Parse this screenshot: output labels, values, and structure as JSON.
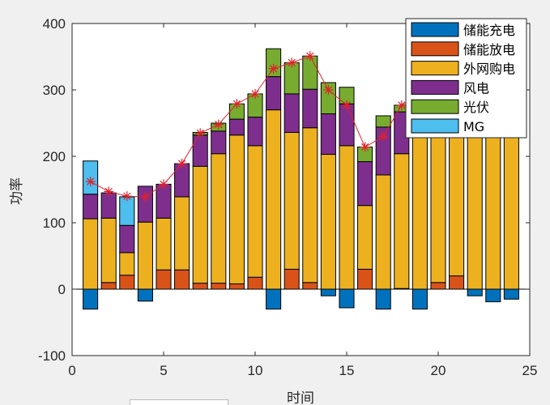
{
  "chart_data": {
    "type": "bar",
    "stacked": true,
    "title": "",
    "xlabel": "时间",
    "ylabel": "功率",
    "xlim": [
      0,
      25
    ],
    "ylim": [
      -100,
      400
    ],
    "xticks": [
      "0",
      "5",
      "10",
      "15",
      "20",
      "25"
    ],
    "yticks": [
      "-100",
      "0",
      "100",
      "200",
      "300",
      "400"
    ],
    "x": [
      1,
      2,
      3,
      4,
      5,
      6,
      7,
      8,
      9,
      10,
      11,
      12,
      13,
      14,
      15,
      16,
      17,
      18,
      19,
      20,
      21,
      22,
      23,
      24
    ],
    "legend_position": "top-right",
    "series": [
      {
        "name": "储能充电",
        "color": "#0072BD",
        "values": [
          -30,
          0,
          0,
          -18,
          0,
          0,
          0,
          0,
          0,
          0,
          -30,
          0,
          0,
          -10,
          -28,
          0,
          -30,
          0,
          -30,
          0,
          0,
          -10,
          -19,
          -15
        ]
      },
      {
        "name": "储能放电",
        "color": "#D95319",
        "values": [
          0,
          10,
          21,
          0,
          29,
          29,
          9,
          9,
          8,
          18,
          0,
          30,
          10,
          0,
          0,
          30,
          0,
          1,
          0,
          10,
          20,
          0,
          0,
          0
        ]
      },
      {
        "name": "外网购电",
        "color": "#EDB120",
        "values": [
          106,
          97,
          34,
          101,
          78,
          110,
          176,
          195,
          224,
          198,
          270,
          206,
          233,
          203,
          216,
          96,
          172,
          203,
          260,
          250,
          240,
          255,
          250,
          245
        ]
      },
      {
        "name": "风电",
        "color": "#7E2F8E",
        "values": [
          37,
          38,
          41,
          54,
          51,
          50,
          47,
          34,
          24,
          43,
          50,
          58,
          58,
          61,
          63,
          66,
          72,
          63,
          0,
          0,
          0,
          0,
          0,
          0
        ]
      },
      {
        "name": "光伏",
        "color": "#77AC30",
        "values": [
          0,
          0,
          0,
          0,
          0,
          0,
          4,
          12,
          23,
          35,
          42,
          47,
          50,
          47,
          25,
          22,
          17,
          10,
          0,
          0,
          0,
          0,
          0,
          0
        ]
      },
      {
        "name": "MG",
        "color": "#4DBEEE",
        "values": [
          50,
          0,
          43,
          0,
          0,
          0,
          0,
          0,
          0,
          0,
          0,
          0,
          0,
          0,
          0,
          0,
          0,
          0,
          0,
          0,
          0,
          0,
          0,
          0
        ]
      }
    ],
    "load_line": {
      "color": "#E0202A",
      "marker": "*",
      "values": [
        162,
        147,
        140,
        139,
        158,
        189,
        235,
        248,
        279,
        294,
        332,
        341,
        351,
        300,
        277,
        214,
        230,
        277,
        290,
        280,
        270,
        260,
        250,
        245
      ]
    }
  }
}
